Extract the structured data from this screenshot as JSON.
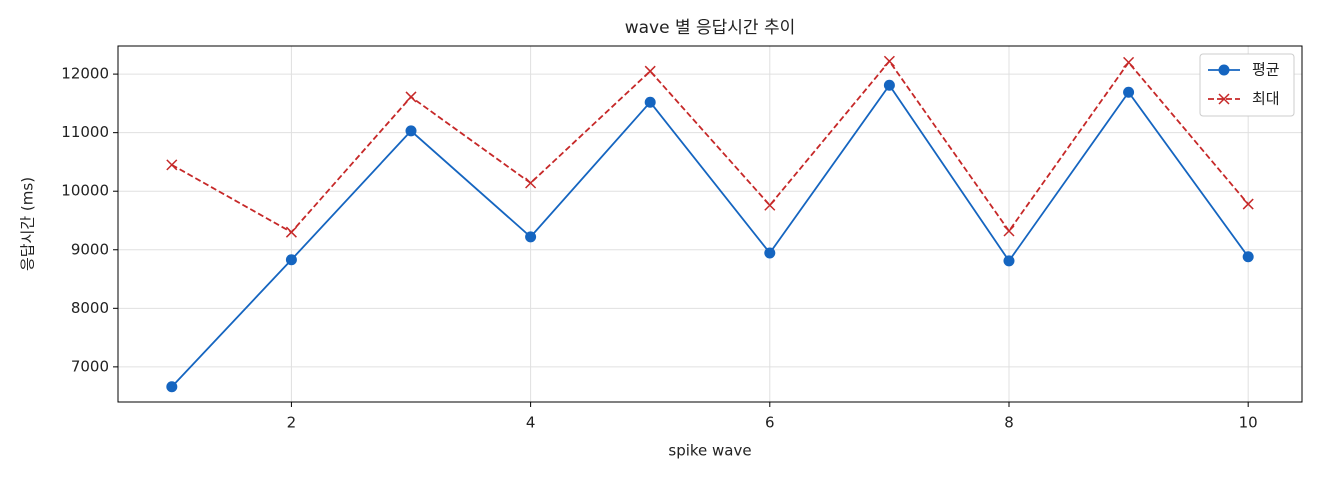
{
  "chart_data": {
    "type": "line",
    "title": "wave 별 응답시간 추이",
    "xlabel": "spike wave",
    "ylabel": "응답시간 (ms)",
    "x": [
      1,
      2,
      3,
      4,
      5,
      6,
      7,
      8,
      9,
      10
    ],
    "series": [
      {
        "name": "평균",
        "color": "#1565c0",
        "marker": "o",
        "linestyle": "solid",
        "values": [
          6660,
          8830,
          11030,
          9220,
          11520,
          8945,
          11810,
          8810,
          11690,
          8880
        ]
      },
      {
        "name": "최대",
        "color": "#c62828",
        "marker": "x",
        "linestyle": "dashed",
        "values": [
          10450,
          9300,
          11610,
          10140,
          12050,
          9760,
          12220,
          9320,
          12200,
          9780
        ]
      }
    ],
    "xlim": [
      0.55,
      10.45
    ],
    "xticks": [
      2,
      4,
      6,
      8,
      10
    ],
    "ylim": [
      6400,
      12480
    ],
    "yticks": [
      7000,
      8000,
      9000,
      10000,
      11000,
      12000
    ],
    "grid": true,
    "legend": "upper right"
  }
}
